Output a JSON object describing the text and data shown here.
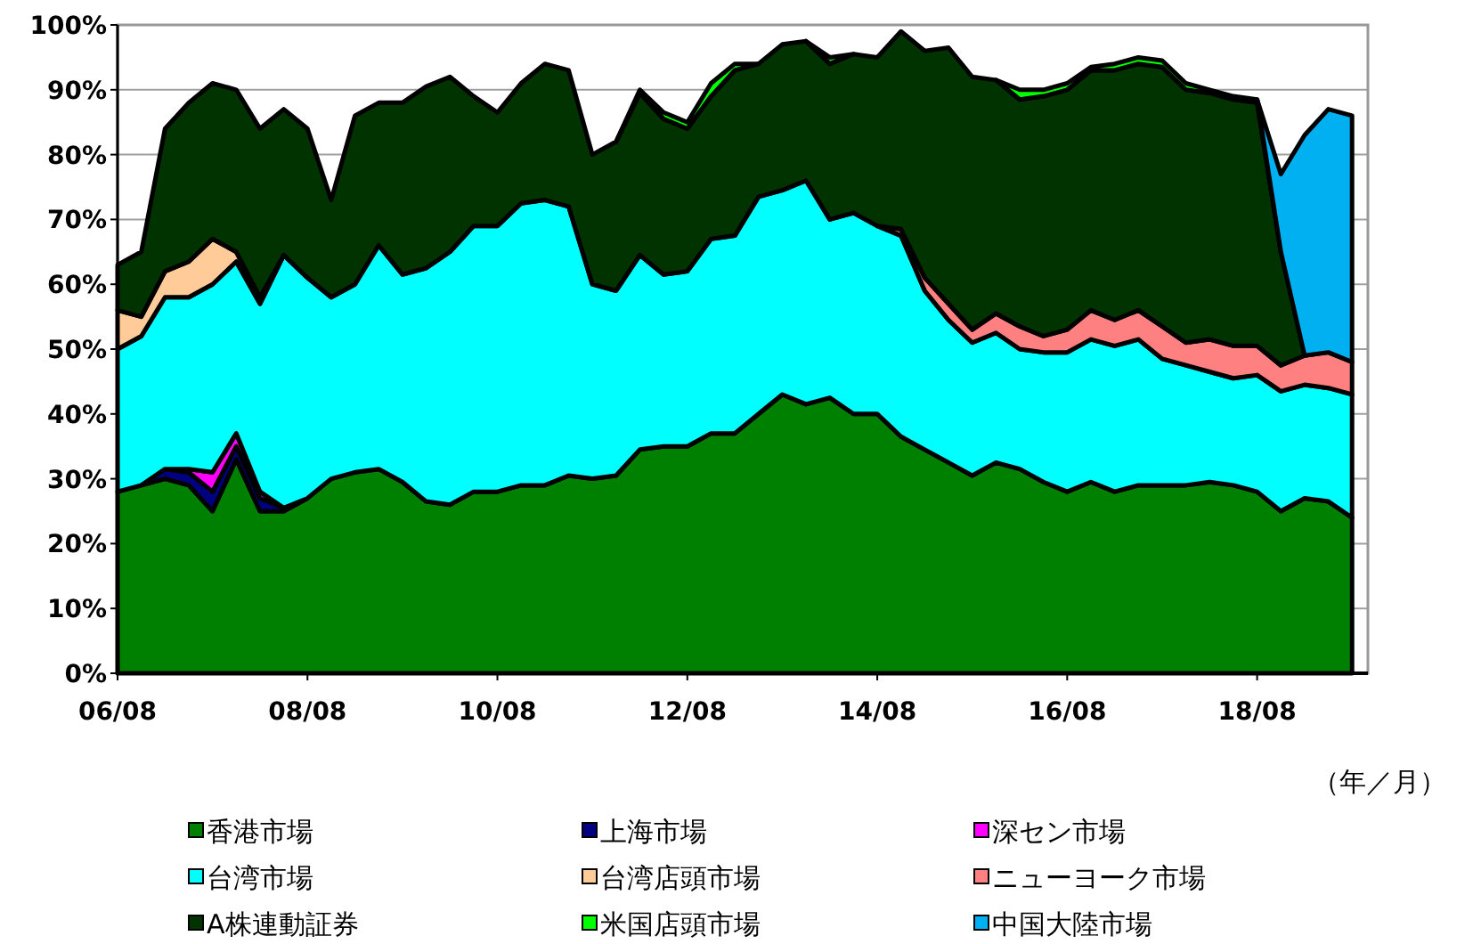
{
  "chart_data": {
    "type": "area",
    "stacked": true,
    "xlabel": "（年／月）",
    "grid": "y",
    "legend": "bottom",
    "x": [
      "2006-08",
      "2006-11",
      "2007-02",
      "2007-05",
      "2007-08",
      "2007-11",
      "2008-02",
      "2008-05",
      "2008-08",
      "2008-11",
      "2009-02",
      "2009-05",
      "2009-08",
      "2009-11",
      "2010-02",
      "2010-05",
      "2010-08",
      "2010-11",
      "2011-02",
      "2011-05",
      "2011-08",
      "2011-11",
      "2012-02",
      "2012-05",
      "2012-08",
      "2012-11",
      "2013-02",
      "2013-05",
      "2013-08",
      "2013-11",
      "2014-02",
      "2014-05",
      "2014-08",
      "2014-11",
      "2015-02",
      "2015-05",
      "2015-08",
      "2015-11",
      "2016-02",
      "2016-05",
      "2016-08",
      "2016-11",
      "2017-02",
      "2017-05",
      "2017-08",
      "2017-11",
      "2018-02",
      "2018-05",
      "2018-08",
      "2018-11",
      "2019-02",
      "2019-05",
      "2019-08"
    ],
    "xlim": [
      "2006-08",
      "2019-10"
    ],
    "xticks": [
      {
        "value": "2006-08",
        "label": "06/08"
      },
      {
        "value": "2008-08",
        "label": "08/08"
      },
      {
        "value": "2010-08",
        "label": "10/08"
      },
      {
        "value": "2012-08",
        "label": "12/08"
      },
      {
        "value": "2014-08",
        "label": "14/08"
      },
      {
        "value": "2016-08",
        "label": "16/08"
      },
      {
        "value": "2018-08",
        "label": "18/08"
      }
    ],
    "ylim": [
      0,
      100
    ],
    "yticks": [
      {
        "value": 0,
        "label": "0%"
      },
      {
        "value": 10,
        "label": "10%"
      },
      {
        "value": 20,
        "label": "20%"
      },
      {
        "value": 30,
        "label": "30%"
      },
      {
        "value": 40,
        "label": "40%"
      },
      {
        "value": 50,
        "label": "50%"
      },
      {
        "value": 60,
        "label": "60%"
      },
      {
        "value": 70,
        "label": "70%"
      },
      {
        "value": 80,
        "label": "80%"
      },
      {
        "value": 90,
        "label": "90%"
      },
      {
        "value": 100,
        "label": "100%"
      }
    ],
    "series": [
      {
        "name": "香港市場",
        "color": "#008000",
        "values": [
          28,
          29,
          30,
          29,
          25,
          33,
          25,
          25,
          27,
          30,
          31,
          31.5,
          29.5,
          26.5,
          26,
          28,
          28,
          29,
          29,
          30.5,
          30,
          30.5,
          34.5,
          35,
          35,
          37,
          37,
          40,
          43,
          41.5,
          42.5,
          40,
          40,
          36.5,
          34.5,
          32.5,
          30.5,
          32.5,
          31.5,
          29.5,
          28,
          29.5,
          28,
          29,
          29,
          29,
          29.5,
          29,
          28,
          25,
          27,
          26.5,
          24
        ]
      },
      {
        "name": "上海市場",
        "color": "#000080",
        "values": [
          null,
          0,
          1.5,
          2,
          3,
          2,
          2,
          0.5,
          0,
          null,
          null,
          null,
          null,
          null,
          null,
          null,
          null,
          null,
          null,
          null,
          null,
          null,
          null,
          null,
          null,
          null,
          null,
          null,
          null,
          null,
          null,
          null,
          null,
          null,
          null,
          null,
          null,
          null,
          null,
          null,
          null,
          null,
          null,
          null,
          null,
          null,
          null,
          null,
          null,
          null,
          null,
          null,
          null
        ]
      },
      {
        "name": "深セン市場",
        "color": "#ff00ff",
        "values": [
          null,
          null,
          0,
          0.5,
          3,
          2,
          1,
          0,
          null,
          null,
          null,
          null,
          null,
          null,
          null,
          null,
          null,
          null,
          null,
          null,
          null,
          null,
          null,
          null,
          null,
          null,
          null,
          null,
          null,
          null,
          null,
          null,
          null,
          null,
          null,
          null,
          null,
          null,
          null,
          null,
          null,
          null,
          null,
          null,
          null,
          null,
          null,
          null,
          null,
          null,
          null,
          null,
          null
        ]
      },
      {
        "name": "台湾市場",
        "color": "#00ffff",
        "values": [
          22,
          23,
          26.5,
          26.5,
          29,
          26.5,
          29,
          39,
          34,
          28,
          29,
          34.5,
          32,
          36,
          39,
          41,
          41,
          43.5,
          44,
          41.5,
          30,
          28.5,
          30,
          26.5,
          27,
          30,
          30.5,
          33.5,
          31.5,
          34.5,
          27.5,
          31,
          29,
          31,
          24.5,
          22,
          20.5,
          20,
          18.5,
          20,
          21.5,
          22,
          22.5,
          22.5,
          19.5,
          18.5,
          17,
          16.5,
          18,
          18.5,
          17.5,
          17.5,
          19
        ]
      },
      {
        "name": "台湾店頭市場",
        "color": "#ffcc99",
        "values": [
          6,
          3,
          4,
          5.5,
          7,
          1.5,
          1,
          0,
          null,
          null,
          null,
          null,
          null,
          null,
          null,
          null,
          null,
          null,
          null,
          null,
          null,
          null,
          null,
          null,
          null,
          null,
          null,
          null,
          null,
          null,
          null,
          null,
          null,
          null,
          null,
          null,
          null,
          null,
          null,
          null,
          null,
          null,
          null,
          null,
          null,
          null,
          null,
          null,
          null,
          null,
          null,
          null,
          null
        ]
      },
      {
        "name": "ニューヨーク市場",
        "color": "#ff8080",
        "values": [
          null,
          null,
          null,
          null,
          null,
          null,
          null,
          null,
          null,
          null,
          null,
          null,
          null,
          null,
          null,
          null,
          null,
          null,
          null,
          null,
          null,
          null,
          null,
          null,
          null,
          null,
          null,
          null,
          null,
          null,
          null,
          null,
          0,
          1,
          2,
          2.5,
          2,
          3,
          3.5,
          2.5,
          3.5,
          4.5,
          4,
          4.5,
          5,
          3.5,
          5,
          5,
          4.5,
          4,
          4.5,
          5.5,
          5
        ]
      },
      {
        "name": "A株連動証券",
        "color": "#003300",
        "values": [
          7,
          10,
          22,
          24.5,
          24,
          25,
          26,
          22.5,
          23,
          15,
          26,
          22,
          26.5,
          28,
          27,
          20,
          17.5,
          18.5,
          21,
          21,
          20,
          23,
          25,
          24,
          22,
          22,
          25.5,
          20.5,
          22.5,
          21.5,
          24,
          24.5,
          26,
          30.5,
          35,
          39.5,
          39,
          36,
          35,
          37,
          37,
          37,
          38.5,
          38,
          40,
          39,
          38,
          38,
          37.5,
          17.5,
          0,
          null,
          null
        ]
      },
      {
        "name": "米国店頭市場",
        "color": "#00ff00",
        "values": [
          null,
          null,
          null,
          null,
          null,
          null,
          null,
          null,
          null,
          null,
          null,
          null,
          null,
          null,
          null,
          null,
          null,
          null,
          null,
          null,
          null,
          0,
          0.5,
          1,
          1,
          2,
          1,
          0,
          null,
          0,
          1,
          0,
          null,
          null,
          null,
          null,
          null,
          0,
          1.5,
          1,
          1,
          0.5,
          1,
          1,
          1,
          1,
          0.5,
          0.5,
          0.5,
          0,
          null,
          null,
          null
        ]
      },
      {
        "name": "中国大陸市場",
        "color": "#00b0f0",
        "values": [
          null,
          null,
          null,
          null,
          null,
          null,
          null,
          null,
          null,
          null,
          null,
          null,
          null,
          null,
          null,
          null,
          null,
          null,
          null,
          null,
          null,
          null,
          null,
          null,
          null,
          null,
          null,
          null,
          null,
          null,
          null,
          null,
          null,
          null,
          null,
          null,
          null,
          null,
          null,
          null,
          null,
          null,
          null,
          null,
          null,
          null,
          null,
          null,
          0,
          12,
          34,
          37.5,
          38
        ]
      }
    ]
  }
}
